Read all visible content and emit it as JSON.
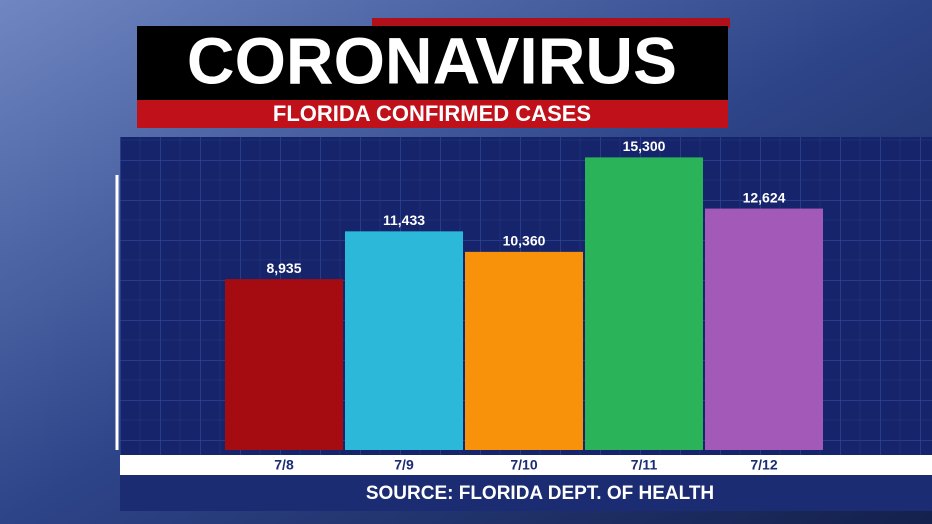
{
  "chart_data": {
    "type": "bar",
    "title": "CORONAVIRUS",
    "subtitle": "FLORIDA CONFIRMED CASES",
    "source": "SOURCE: FLORIDA DEPT. OF HEALTH",
    "categories": [
      "7/8",
      "7/9",
      "7/10",
      "7/11",
      "7/12"
    ],
    "values": [
      8935,
      11433,
      10360,
      15300,
      12624
    ],
    "value_labels": [
      "8,935",
      "11,433",
      "10,360",
      "15,300",
      "12,624"
    ],
    "colors": [
      "#a50c12",
      "#2bb8d9",
      "#f7920a",
      "#2bb35a",
      "#a259b8"
    ],
    "ylim": [
      0,
      16000
    ]
  }
}
